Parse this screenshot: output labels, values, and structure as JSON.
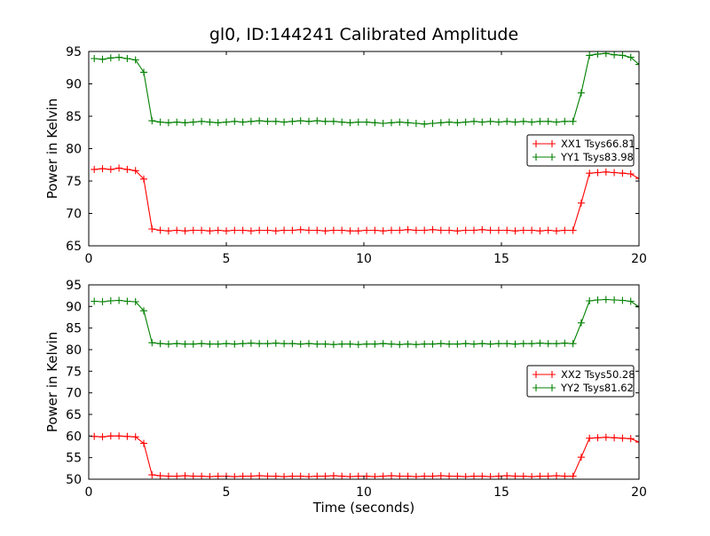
{
  "title": "gl0, ID:144241 Calibrated Amplitude",
  "colors": {
    "xx_series": "#ff0000",
    "yy_series": "#008000",
    "frame": "#000000",
    "background": "#ffffff"
  },
  "chart_data": [
    {
      "type": "line",
      "subplot": "top",
      "ylabel": "Power in Kelvin",
      "xlabel": "",
      "xlim": [
        0,
        20
      ],
      "ylim": [
        65,
        95
      ],
      "xticks": [
        0,
        5,
        10,
        15,
        20
      ],
      "yticks": [
        65,
        70,
        75,
        80,
        85,
        90,
        95
      ],
      "grid": false,
      "legend_position": "inside-right",
      "marker": "+",
      "x": [
        0.2,
        0.5,
        0.8,
        1.1,
        1.4,
        1.7,
        2.0,
        2.3,
        2.6,
        2.9,
        3.2,
        3.5,
        3.8,
        4.1,
        4.4,
        4.7,
        5.0,
        5.3,
        5.6,
        5.9,
        6.2,
        6.5,
        6.8,
        7.1,
        7.4,
        7.7,
        8.0,
        8.3,
        8.6,
        8.9,
        9.2,
        9.5,
        9.8,
        10.1,
        10.4,
        10.7,
        11.0,
        11.3,
        11.6,
        11.9,
        12.2,
        12.5,
        12.8,
        13.1,
        13.4,
        13.7,
        14.0,
        14.3,
        14.6,
        14.9,
        15.2,
        15.5,
        15.8,
        16.1,
        16.4,
        16.7,
        17.0,
        17.3,
        17.6,
        17.9,
        18.2,
        18.5,
        18.8,
        19.1,
        19.4,
        19.7,
        20.0
      ],
      "series": [
        {
          "name": "XX1 Tsys66.81",
          "color": "#ff0000",
          "values": [
            76.8,
            76.9,
            76.8,
            77.0,
            76.8,
            76.6,
            75.3,
            67.6,
            67.4,
            67.3,
            67.4,
            67.3,
            67.4,
            67.4,
            67.3,
            67.4,
            67.3,
            67.4,
            67.4,
            67.3,
            67.4,
            67.4,
            67.3,
            67.4,
            67.4,
            67.5,
            67.4,
            67.4,
            67.3,
            67.4,
            67.4,
            67.3,
            67.3,
            67.4,
            67.4,
            67.3,
            67.4,
            67.4,
            67.5,
            67.4,
            67.4,
            67.5,
            67.4,
            67.4,
            67.3,
            67.4,
            67.4,
            67.5,
            67.4,
            67.4,
            67.4,
            67.3,
            67.4,
            67.4,
            67.3,
            67.4,
            67.3,
            67.4,
            67.4,
            71.6,
            76.2,
            76.3,
            76.4,
            76.3,
            76.2,
            76.1,
            75.4
          ]
        },
        {
          "name": "YY1 Tsys83.98",
          "color": "#008000",
          "values": [
            93.9,
            93.8,
            94.0,
            94.1,
            93.9,
            93.7,
            91.8,
            84.3,
            84.1,
            84.0,
            84.1,
            84.0,
            84.1,
            84.2,
            84.1,
            84.0,
            84.1,
            84.2,
            84.1,
            84.2,
            84.3,
            84.2,
            84.2,
            84.1,
            84.2,
            84.3,
            84.2,
            84.3,
            84.2,
            84.2,
            84.1,
            84.0,
            84.1,
            84.1,
            84.0,
            83.9,
            84.0,
            84.1,
            84.0,
            83.9,
            83.8,
            83.9,
            84.0,
            84.1,
            84.0,
            84.1,
            84.2,
            84.1,
            84.2,
            84.1,
            84.2,
            84.1,
            84.2,
            84.1,
            84.2,
            84.2,
            84.1,
            84.2,
            84.2,
            88.6,
            94.4,
            94.6,
            94.7,
            94.5,
            94.4,
            94.1,
            93.0
          ]
        }
      ]
    },
    {
      "type": "line",
      "subplot": "bottom",
      "ylabel": "Power in Kelvin",
      "xlabel": "Time (seconds)",
      "xlim": [
        0,
        20
      ],
      "ylim": [
        50,
        95
      ],
      "xticks": [
        0,
        5,
        10,
        15,
        20
      ],
      "yticks": [
        50,
        55,
        60,
        65,
        70,
        75,
        80,
        85,
        90,
        95
      ],
      "grid": false,
      "legend_position": "inside-right",
      "marker": "+",
      "x": [
        0.2,
        0.5,
        0.8,
        1.1,
        1.4,
        1.7,
        2.0,
        2.3,
        2.6,
        2.9,
        3.2,
        3.5,
        3.8,
        4.1,
        4.4,
        4.7,
        5.0,
        5.3,
        5.6,
        5.9,
        6.2,
        6.5,
        6.8,
        7.1,
        7.4,
        7.7,
        8.0,
        8.3,
        8.6,
        8.9,
        9.2,
        9.5,
        9.8,
        10.1,
        10.4,
        10.7,
        11.0,
        11.3,
        11.6,
        11.9,
        12.2,
        12.5,
        12.8,
        13.1,
        13.4,
        13.7,
        14.0,
        14.3,
        14.6,
        14.9,
        15.2,
        15.5,
        15.8,
        16.1,
        16.4,
        16.7,
        17.0,
        17.3,
        17.6,
        17.9,
        18.2,
        18.5,
        18.8,
        19.1,
        19.4,
        19.7,
        20.0
      ],
      "series": [
        {
          "name": "XX2 Tsys50.28",
          "color": "#ff0000",
          "values": [
            59.9,
            59.8,
            60.0,
            60.0,
            59.9,
            59.8,
            58.3,
            51.0,
            50.8,
            50.7,
            50.7,
            50.8,
            50.7,
            50.7,
            50.6,
            50.7,
            50.7,
            50.6,
            50.7,
            50.7,
            50.8,
            50.7,
            50.7,
            50.6,
            50.7,
            50.7,
            50.6,
            50.7,
            50.7,
            50.8,
            50.7,
            50.6,
            50.7,
            50.7,
            50.6,
            50.7,
            50.8,
            50.7,
            50.7,
            50.6,
            50.7,
            50.7,
            50.8,
            50.7,
            50.7,
            50.6,
            50.7,
            50.7,
            50.6,
            50.7,
            50.8,
            50.7,
            50.7,
            50.6,
            50.7,
            50.7,
            50.8,
            50.7,
            50.7,
            55.1,
            59.5,
            59.6,
            59.7,
            59.6,
            59.5,
            59.4,
            58.6
          ]
        },
        {
          "name": "YY2 Tsys81.62",
          "color": "#008000",
          "values": [
            91.2,
            91.1,
            91.3,
            91.4,
            91.2,
            91.1,
            89.0,
            81.6,
            81.4,
            81.3,
            81.4,
            81.3,
            81.3,
            81.4,
            81.3,
            81.3,
            81.4,
            81.3,
            81.4,
            81.5,
            81.4,
            81.4,
            81.5,
            81.4,
            81.4,
            81.3,
            81.4,
            81.3,
            81.3,
            81.2,
            81.3,
            81.3,
            81.2,
            81.3,
            81.3,
            81.4,
            81.3,
            81.2,
            81.3,
            81.2,
            81.3,
            81.3,
            81.4,
            81.3,
            81.3,
            81.4,
            81.3,
            81.4,
            81.3,
            81.4,
            81.4,
            81.3,
            81.4,
            81.4,
            81.5,
            81.4,
            81.4,
            81.5,
            81.4,
            86.2,
            91.3,
            91.5,
            91.6,
            91.5,
            91.4,
            91.2,
            89.9
          ]
        }
      ]
    }
  ]
}
